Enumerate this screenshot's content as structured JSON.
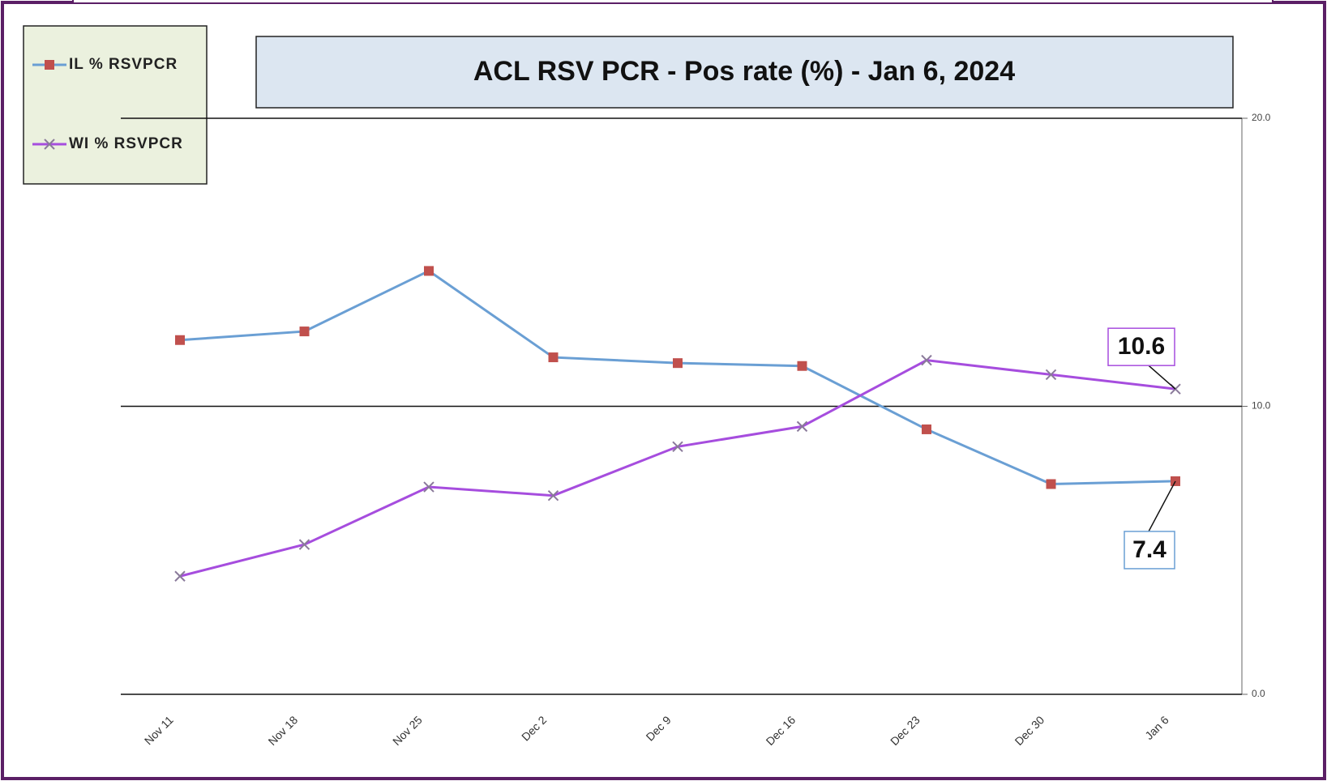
{
  "chart_data": {
    "type": "line",
    "title": "ACL RSV PCR - Pos rate (%) -  Jan 6, 2024",
    "categories": [
      "Nov 11",
      "Nov 18",
      "Nov 25",
      "Dec 2",
      "Dec 9",
      "Dec 16",
      "Dec 23",
      "Dec 30",
      "Jan 6"
    ],
    "series": [
      {
        "name": "IL % RSVPCR",
        "color": "#6a9fd4",
        "marker_color": "#c0504d",
        "marker": "square",
        "values": [
          12.3,
          12.6,
          14.7,
          11.7,
          11.5,
          11.4,
          9.2,
          7.3,
          7.4
        ]
      },
      {
        "name": "WI % RSVPCR",
        "color": "#a64dde",
        "marker_color": "#8a7a9a",
        "marker": "x",
        "values": [
          4.1,
          5.2,
          7.2,
          6.9,
          8.6,
          9.3,
          11.6,
          11.1,
          10.6
        ]
      }
    ],
    "ylim": [
      0,
      20
    ],
    "yticks": [
      {
        "value": 0,
        "label": "0.0"
      },
      {
        "value": 10,
        "label": "10.0"
      },
      {
        "value": 20,
        "label": "20.0"
      }
    ],
    "yaxis_position": "right",
    "grid": true,
    "legend": "upper left"
  }
}
